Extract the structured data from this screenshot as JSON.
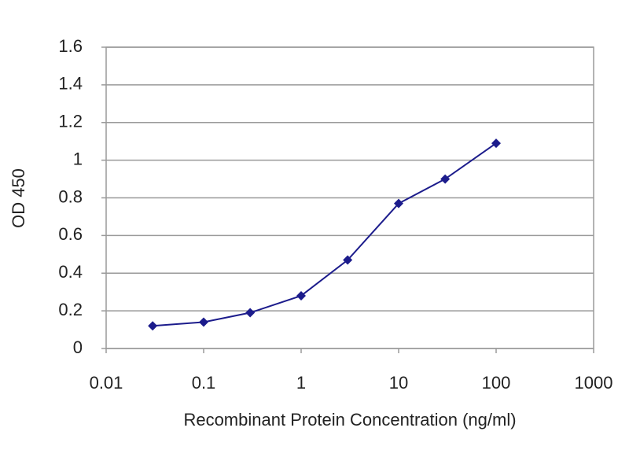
{
  "chart_data": {
    "type": "line",
    "x_label": "Recombinant Protein Concentration (ng/ml)",
    "y_label": "OD 450",
    "x": [
      0.03,
      0.1,
      0.3,
      1,
      3,
      10,
      30,
      100
    ],
    "values": [
      0.12,
      0.14,
      0.19,
      0.28,
      0.47,
      0.77,
      0.9,
      1.09
    ],
    "color": "#1c1c8c",
    "xlim": [
      0.01,
      1000
    ],
    "xticks": [
      0.01,
      0.1,
      1,
      10,
      100,
      1000
    ],
    "xscale": "log",
    "ylim": [
      0,
      1.6
    ],
    "yticks": [
      0,
      0.2,
      0.4,
      0.6,
      0.8,
      1,
      1.2,
      1.4,
      1.6
    ],
    "grid": true
  }
}
